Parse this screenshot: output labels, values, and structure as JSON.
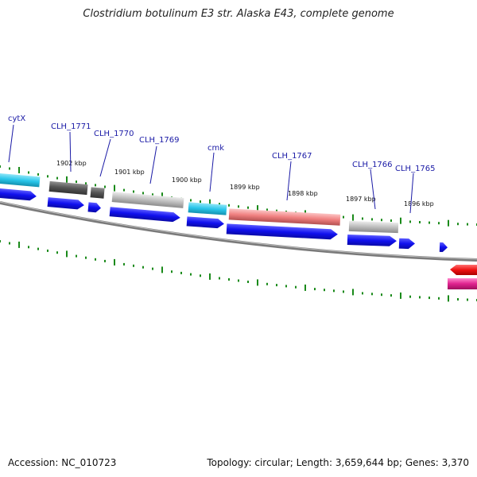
{
  "title": "Clostridium botulinum E3 str. Alaska E43, complete genome",
  "footer": {
    "accession": "Accession: NC_010723",
    "stats": "Topology: circular; Length: 3,659,644 bp; Genes: 3,370"
  },
  "colors": {
    "cds_forward": "#1a1aff",
    "gene_cyan": "#29c6ea",
    "gene_dark": "#555555",
    "gene_gray": "#b8b8b8",
    "gene_salmon": "#f08282",
    "reverse_red": "#ee1111",
    "reverse_magenta": "#e0228f",
    "backbone": "#7a7a7a",
    "tick": "#1a8a1a",
    "label": "#1a1aa6"
  },
  "gene_labels": [
    "cytX",
    "CLH_1771",
    "CLH_1770",
    "CLH_1769",
    "cmk",
    "CLH_1767",
    "CLH_1766",
    "CLH_1765"
  ],
  "tick_labels": [
    "1902 kbp",
    "1901 kbp",
    "1900 kbp",
    "1899 kbp",
    "1898 kbp",
    "1897 kbp",
    "1896 kbp"
  ]
}
